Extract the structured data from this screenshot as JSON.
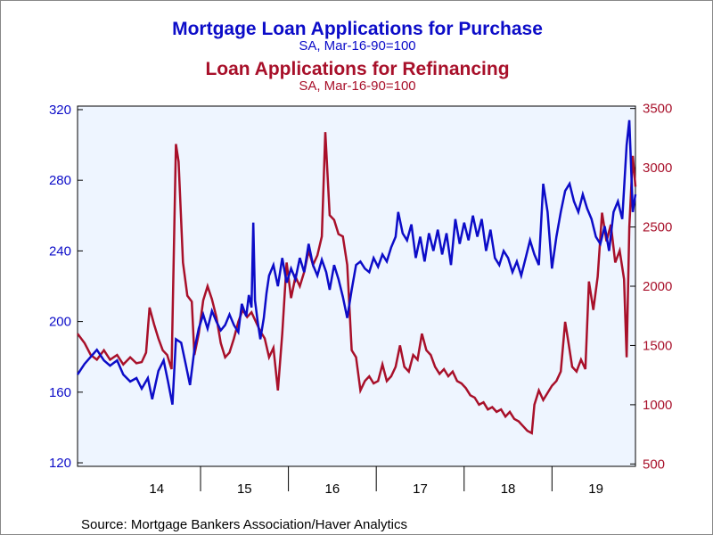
{
  "titles": {
    "purchase_title": "Mortgage Loan Applications for Purchase",
    "purchase_subtitle": "SA, Mar-16-90=100",
    "refi_title": "Loan Applications for Refinancing",
    "refi_subtitle": "SA, Mar-16-90=100"
  },
  "source": "Source:  Mortgage Bankers Association/Haver Analytics",
  "colors": {
    "purchase": "#0c0cc8",
    "refi": "#a8102a",
    "plot_bg": "#eef5ff",
    "text": "#000000"
  },
  "chart_data": {
    "type": "line",
    "x_unit": "year",
    "x_range": [
      2013.6,
      2019.95
    ],
    "x_tick_labels": [
      "14",
      "15",
      "16",
      "17",
      "18",
      "19"
    ],
    "x_tick_values": [
      2014,
      2015,
      2016,
      2017,
      2018,
      2019
    ],
    "left_axis": {
      "range": [
        118,
        322
      ],
      "ticks": [
        120,
        160,
        200,
        240,
        280,
        320
      ],
      "color": "#0c0cc8"
    },
    "right_axis": {
      "range": [
        480,
        3520
      ],
      "ticks": [
        500,
        1000,
        1500,
        2000,
        2500,
        3000,
        3500
      ],
      "color": "#a8102a"
    },
    "grid": false,
    "legend": "title-colored",
    "series": [
      {
        "name": "Mortgage Loan Applications for Purchase",
        "axis": "left",
        "points": [
          [
            2013.6,
            170
          ],
          [
            2013.68,
            176
          ],
          [
            2013.75,
            180
          ],
          [
            2013.82,
            184
          ],
          [
            2013.9,
            178
          ],
          [
            2013.97,
            175
          ],
          [
            2014.05,
            178
          ],
          [
            2014.12,
            170
          ],
          [
            2014.2,
            166
          ],
          [
            2014.27,
            168
          ],
          [
            2014.33,
            162
          ],
          [
            2014.4,
            168
          ],
          [
            2014.45,
            156
          ],
          [
            2014.52,
            172
          ],
          [
            2014.58,
            178
          ],
          [
            2014.63,
            166
          ],
          [
            2014.68,
            153
          ],
          [
            2014.72,
            190
          ],
          [
            2014.78,
            188
          ],
          [
            2014.83,
            176
          ],
          [
            2014.88,
            164
          ],
          [
            2014.93,
            184
          ],
          [
            2014.98,
            196
          ],
          [
            2015.03,
            204
          ],
          [
            2015.08,
            196
          ],
          [
            2015.13,
            206
          ],
          [
            2015.18,
            200
          ],
          [
            2015.23,
            195
          ],
          [
            2015.28,
            198
          ],
          [
            2015.33,
            204
          ],
          [
            2015.38,
            198
          ],
          [
            2015.43,
            194
          ],
          [
            2015.47,
            210
          ],
          [
            2015.52,
            203
          ],
          [
            2015.55,
            215
          ],
          [
            2015.58,
            208
          ],
          [
            2015.6,
            256
          ],
          [
            2015.62,
            212
          ],
          [
            2015.65,
            200
          ],
          [
            2015.68,
            190
          ],
          [
            2015.72,
            202
          ],
          [
            2015.75,
            216
          ],
          [
            2015.78,
            226
          ],
          [
            2015.83,
            232
          ],
          [
            2015.88,
            220
          ],
          [
            2015.93,
            236
          ],
          [
            2015.98,
            222
          ],
          [
            2016.03,
            230
          ],
          [
            2016.08,
            224
          ],
          [
            2016.13,
            236
          ],
          [
            2016.18,
            228
          ],
          [
            2016.23,
            244
          ],
          [
            2016.28,
            232
          ],
          [
            2016.33,
            226
          ],
          [
            2016.38,
            235
          ],
          [
            2016.43,
            228
          ],
          [
            2016.47,
            218
          ],
          [
            2016.52,
            232
          ],
          [
            2016.57,
            224
          ],
          [
            2016.62,
            214
          ],
          [
            2016.67,
            202
          ],
          [
            2016.72,
            218
          ],
          [
            2016.77,
            232
          ],
          [
            2016.82,
            234
          ],
          [
            2016.87,
            230
          ],
          [
            2016.92,
            228
          ],
          [
            2016.97,
            236
          ],
          [
            2017.02,
            231
          ],
          [
            2017.07,
            238
          ],
          [
            2017.12,
            234
          ],
          [
            2017.17,
            242
          ],
          [
            2017.22,
            248
          ],
          [
            2017.25,
            262
          ],
          [
            2017.3,
            250
          ],
          [
            2017.35,
            246
          ],
          [
            2017.4,
            255
          ],
          [
            2017.45,
            236
          ],
          [
            2017.5,
            248
          ],
          [
            2017.55,
            234
          ],
          [
            2017.6,
            250
          ],
          [
            2017.65,
            240
          ],
          [
            2017.7,
            252
          ],
          [
            2017.75,
            238
          ],
          [
            2017.8,
            250
          ],
          [
            2017.85,
            232
          ],
          [
            2017.9,
            258
          ],
          [
            2017.95,
            244
          ],
          [
            2018.0,
            256
          ],
          [
            2018.05,
            246
          ],
          [
            2018.1,
            260
          ],
          [
            2018.15,
            248
          ],
          [
            2018.2,
            258
          ],
          [
            2018.25,
            240
          ],
          [
            2018.3,
            252
          ],
          [
            2018.35,
            236
          ],
          [
            2018.4,
            232
          ],
          [
            2018.45,
            240
          ],
          [
            2018.5,
            236
          ],
          [
            2018.55,
            228
          ],
          [
            2018.6,
            234
          ],
          [
            2018.65,
            226
          ],
          [
            2018.7,
            236
          ],
          [
            2018.75,
            246
          ],
          [
            2018.8,
            238
          ],
          [
            2018.85,
            232
          ],
          [
            2018.9,
            278
          ],
          [
            2018.95,
            262
          ],
          [
            2019.0,
            230
          ],
          [
            2019.05,
            248
          ],
          [
            2019.1,
            262
          ],
          [
            2019.15,
            274
          ],
          [
            2019.2,
            278
          ],
          [
            2019.25,
            268
          ],
          [
            2019.3,
            262
          ],
          [
            2019.35,
            272
          ],
          [
            2019.4,
            264
          ],
          [
            2019.45,
            258
          ],
          [
            2019.5,
            248
          ],
          [
            2019.55,
            244
          ],
          [
            2019.6,
            254
          ],
          [
            2019.65,
            240
          ],
          [
            2019.7,
            262
          ],
          [
            2019.75,
            268
          ],
          [
            2019.8,
            258
          ],
          [
            2019.85,
            300
          ],
          [
            2019.88,
            314
          ],
          [
            2019.92,
            262
          ],
          [
            2019.95,
            272
          ]
        ]
      },
      {
        "name": "Loan Applications for Refinancing",
        "axis": "right",
        "points": [
          [
            2013.6,
            1600
          ],
          [
            2013.68,
            1520
          ],
          [
            2013.75,
            1420
          ],
          [
            2013.82,
            1380
          ],
          [
            2013.9,
            1460
          ],
          [
            2013.97,
            1380
          ],
          [
            2014.05,
            1420
          ],
          [
            2014.12,
            1340
          ],
          [
            2014.2,
            1400
          ],
          [
            2014.27,
            1350
          ],
          [
            2014.33,
            1360
          ],
          [
            2014.38,
            1440
          ],
          [
            2014.42,
            1820
          ],
          [
            2014.47,
            1680
          ],
          [
            2014.52,
            1560
          ],
          [
            2014.57,
            1460
          ],
          [
            2014.62,
            1420
          ],
          [
            2014.67,
            1300
          ],
          [
            2014.72,
            3200
          ],
          [
            2014.75,
            3050
          ],
          [
            2014.8,
            2200
          ],
          [
            2014.85,
            1920
          ],
          [
            2014.9,
            1870
          ],
          [
            2014.93,
            1420
          ],
          [
            2014.98,
            1600
          ],
          [
            2015.03,
            1880
          ],
          [
            2015.08,
            2000
          ],
          [
            2015.13,
            1890
          ],
          [
            2015.18,
            1740
          ],
          [
            2015.23,
            1520
          ],
          [
            2015.28,
            1400
          ],
          [
            2015.33,
            1440
          ],
          [
            2015.38,
            1560
          ],
          [
            2015.43,
            1700
          ],
          [
            2015.48,
            1800
          ],
          [
            2015.53,
            1740
          ],
          [
            2015.58,
            1780
          ],
          [
            2015.63,
            1700
          ],
          [
            2015.68,
            1620
          ],
          [
            2015.73,
            1560
          ],
          [
            2015.78,
            1400
          ],
          [
            2015.83,
            1480
          ],
          [
            2015.88,
            1120
          ],
          [
            2015.93,
            1600
          ],
          [
            2015.98,
            2200
          ],
          [
            2016.03,
            1900
          ],
          [
            2016.08,
            2080
          ],
          [
            2016.13,
            2000
          ],
          [
            2016.18,
            2120
          ],
          [
            2016.23,
            2300
          ],
          [
            2016.28,
            2180
          ],
          [
            2016.33,
            2260
          ],
          [
            2016.38,
            2420
          ],
          [
            2016.42,
            3300
          ],
          [
            2016.47,
            2600
          ],
          [
            2016.52,
            2560
          ],
          [
            2016.57,
            2440
          ],
          [
            2016.62,
            2420
          ],
          [
            2016.67,
            2180
          ],
          [
            2016.72,
            1460
          ],
          [
            2016.77,
            1400
          ],
          [
            2016.82,
            1120
          ],
          [
            2016.87,
            1200
          ],
          [
            2016.92,
            1240
          ],
          [
            2016.97,
            1180
          ],
          [
            2017.02,
            1200
          ],
          [
            2017.07,
            1340
          ],
          [
            2017.12,
            1200
          ],
          [
            2017.17,
            1240
          ],
          [
            2017.22,
            1320
          ],
          [
            2017.27,
            1500
          ],
          [
            2017.32,
            1320
          ],
          [
            2017.37,
            1280
          ],
          [
            2017.42,
            1420
          ],
          [
            2017.47,
            1380
          ],
          [
            2017.52,
            1600
          ],
          [
            2017.57,
            1460
          ],
          [
            2017.62,
            1420
          ],
          [
            2017.67,
            1320
          ],
          [
            2017.72,
            1260
          ],
          [
            2017.77,
            1300
          ],
          [
            2017.82,
            1240
          ],
          [
            2017.87,
            1280
          ],
          [
            2017.92,
            1200
          ],
          [
            2017.97,
            1180
          ],
          [
            2018.02,
            1140
          ],
          [
            2018.07,
            1080
          ],
          [
            2018.12,
            1060
          ],
          [
            2018.17,
            1000
          ],
          [
            2018.22,
            1020
          ],
          [
            2018.27,
            960
          ],
          [
            2018.32,
            980
          ],
          [
            2018.37,
            940
          ],
          [
            2018.42,
            960
          ],
          [
            2018.47,
            900
          ],
          [
            2018.52,
            940
          ],
          [
            2018.57,
            880
          ],
          [
            2018.62,
            860
          ],
          [
            2018.67,
            820
          ],
          [
            2018.72,
            780
          ],
          [
            2018.77,
            760
          ],
          [
            2018.8,
            1000
          ],
          [
            2018.85,
            1120
          ],
          [
            2018.9,
            1040
          ],
          [
            2018.95,
            1100
          ],
          [
            2019.0,
            1160
          ],
          [
            2019.05,
            1200
          ],
          [
            2019.1,
            1280
          ],
          [
            2019.15,
            1700
          ],
          [
            2019.18,
            1560
          ],
          [
            2019.23,
            1320
          ],
          [
            2019.28,
            1280
          ],
          [
            2019.33,
            1380
          ],
          [
            2019.38,
            1300
          ],
          [
            2019.42,
            2040
          ],
          [
            2019.47,
            1800
          ],
          [
            2019.52,
            2080
          ],
          [
            2019.57,
            2620
          ],
          [
            2019.62,
            2380
          ],
          [
            2019.67,
            2520
          ],
          [
            2019.72,
            2200
          ],
          [
            2019.77,
            2300
          ],
          [
            2019.82,
            2060
          ],
          [
            2019.85,
            1400
          ],
          [
            2019.88,
            2500
          ],
          [
            2019.92,
            3100
          ],
          [
            2019.95,
            2840
          ]
        ]
      }
    ]
  }
}
